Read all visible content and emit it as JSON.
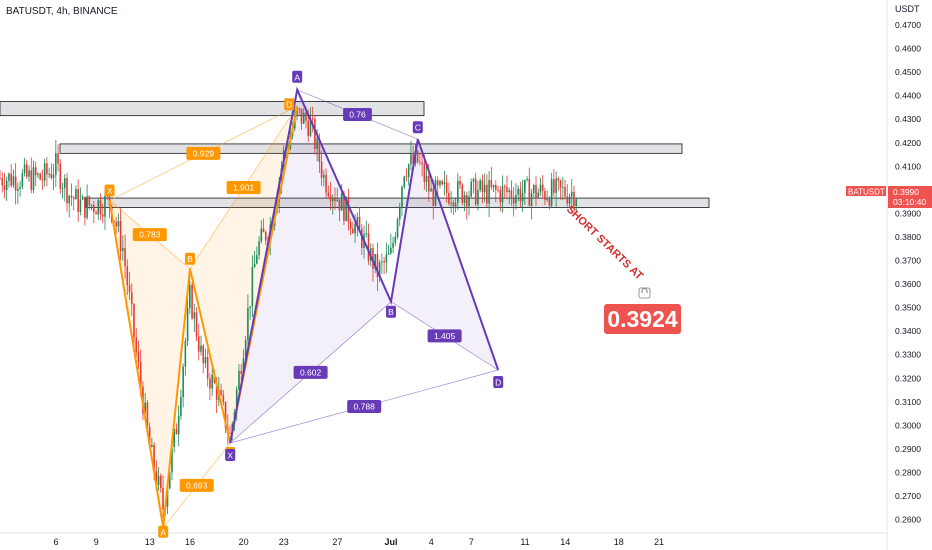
{
  "header": {
    "symbol_line": "BATUSDT, 4h, BINANCE"
  },
  "price_axis": {
    "currency": "USDT",
    "ticks": [
      "0.4700",
      "0.4600",
      "0.4500",
      "0.4400",
      "0.4300",
      "0.4200",
      "0.4100",
      "0.4000",
      "0.3900",
      "0.3800",
      "0.3700",
      "0.3600",
      "0.3500",
      "0.3400",
      "0.3300",
      "0.3200",
      "0.3100",
      "0.3000",
      "0.2900",
      "0.2800",
      "0.2700",
      "0.2600"
    ],
    "last_price_tag": {
      "symbol": "BATUSDT",
      "price": "0.3990",
      "countdown": "03:10:40"
    }
  },
  "time_axis": {
    "labels": [
      "6",
      "9",
      "13",
      "16",
      "20",
      "23",
      "27",
      "Jul",
      "4",
      "7",
      "11",
      "14",
      "18",
      "21"
    ]
  },
  "annotation": {
    "text": "SHORT STARTS AT",
    "price_box": "0.3924"
  },
  "colors": {
    "orange_pattern": "#ff9800",
    "purple_pattern": "#673ab7",
    "up_candle": "#1e8a5a",
    "down_candle": "#e53935",
    "price_tag": "#ef5350",
    "annotation_red": "#d32f2f"
  },
  "chart_data": {
    "type": "candlestick",
    "title": "BATUSDT, 4h, BINANCE",
    "ylabel": "USDT",
    "ylim": [
      0.255,
      0.475
    ],
    "grid": false,
    "last_price": 0.399,
    "resistance_zones": [
      [
        0.4315,
        0.4375
      ],
      [
        0.4155,
        0.4195
      ],
      [
        0.3925,
        0.3965
      ]
    ],
    "patterns": [
      {
        "name": "orange",
        "color": "#ff9800",
        "points": [
          {
            "label": "X",
            "date": "2023-06-10",
            "price": 0.3955
          },
          {
            "label": "A",
            "date": "2023-06-14",
            "price": 0.2565
          },
          {
            "label": "B",
            "date": "2023-06-16",
            "price": 0.3665
          },
          {
            "label": "C",
            "date": "2023-06-19",
            "price": 0.2925
          },
          {
            "label": "D",
            "date": "2023-06-24",
            "price": 0.4355
          }
        ],
        "ratios": [
          {
            "text": "0.783",
            "from": "X",
            "to": "B"
          },
          {
            "text": "0.693",
            "from": "A",
            "to": "C"
          },
          {
            "text": "1.901",
            "from": "B",
            "to": "D"
          },
          {
            "text": "0.929",
            "from": "X",
            "to": "D"
          }
        ]
      },
      {
        "name": "purple",
        "color": "#673ab7",
        "points": [
          {
            "label": "X",
            "date": "2023-06-19",
            "price": 0.2925
          },
          {
            "label": "A",
            "date": "2023-06-24",
            "price": 0.4425
          },
          {
            "label": "B",
            "date": "2023-07-01",
            "price": 0.3525
          },
          {
            "label": "C",
            "date": "2023-07-03",
            "price": 0.4215
          },
          {
            "label": "D",
            "date": "2023-07-09",
            "price": 0.3235
          }
        ],
        "ratios": [
          {
            "text": "0.602",
            "from": "X",
            "to": "B"
          },
          {
            "text": "0.76",
            "from": "A",
            "to": "C"
          },
          {
            "text": "1.405",
            "from": "B",
            "to": "D"
          },
          {
            "text": "0.788",
            "from": "X",
            "to": "D"
          }
        ]
      }
    ]
  }
}
